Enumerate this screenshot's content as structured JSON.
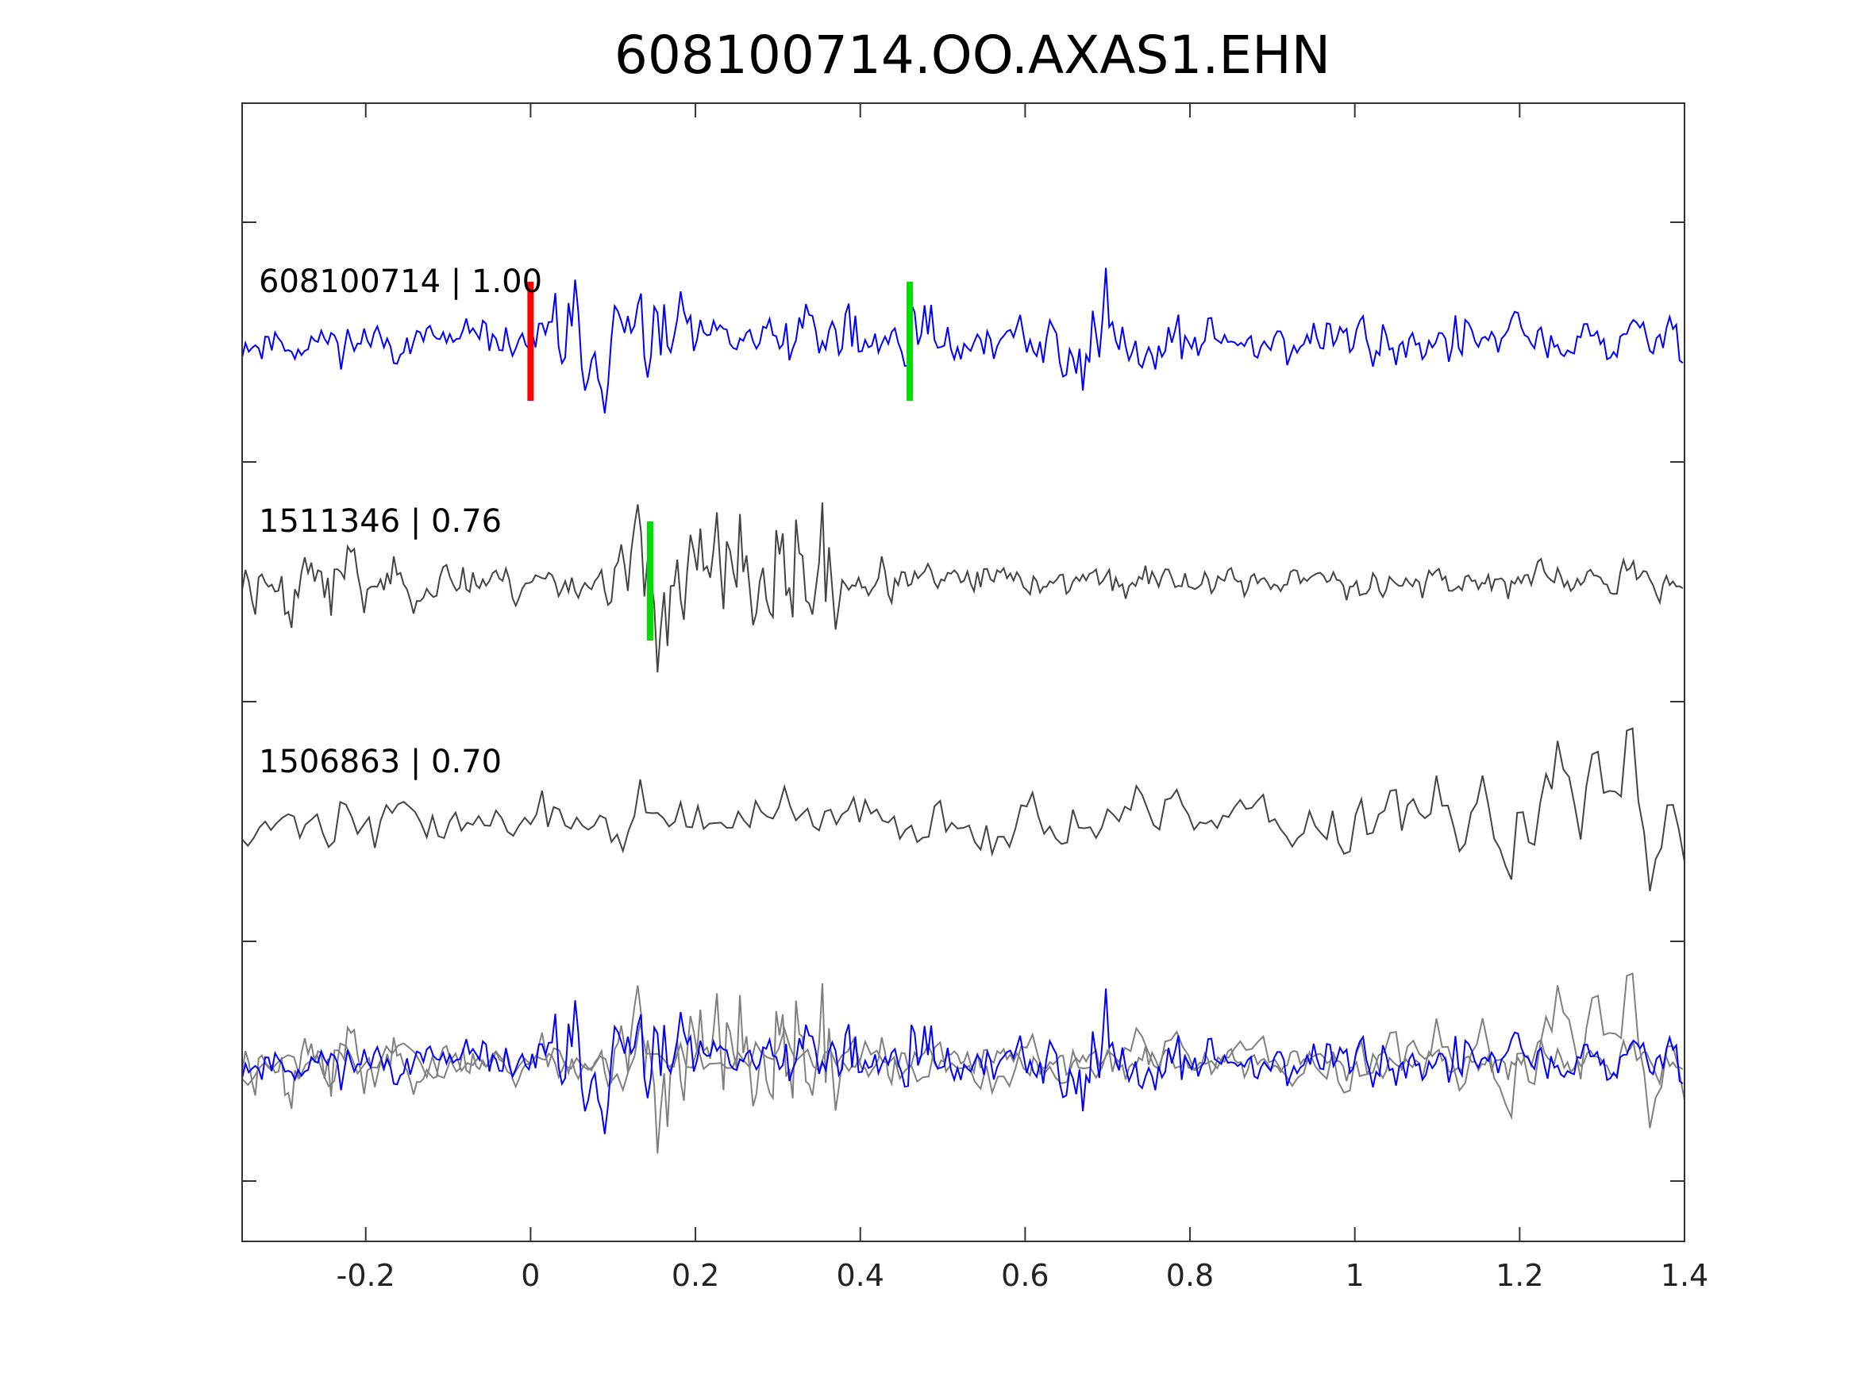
{
  "chart_data": {
    "type": "line",
    "title": "608100714.OO.AXAS1.EHN",
    "xlabel": "",
    "ylabel": "",
    "xlim": [
      -0.35,
      1.4
    ],
    "x_ticks": [
      "-0.2",
      "0",
      "0.2",
      "0.4",
      "0.6",
      "0.8",
      "1",
      "1.2",
      "1.4"
    ],
    "x_tick_values": [
      -0.2,
      0,
      0.2,
      0.4,
      0.6,
      0.8,
      1,
      1.2,
      1.4
    ],
    "y_ticks_count": 9,
    "y_labels_shown": false,
    "grid": false,
    "colors": {
      "main_trace": "#0000ff",
      "neighbor_trace": "#444444",
      "overlay_neighbor": "#808080",
      "p_pick": "#ff0000",
      "s_pick": "#00dd00",
      "axes": "#333333"
    },
    "series": [
      {
        "label": "608100714 | 1.00",
        "role": "reference",
        "color": "#0000ff",
        "picks": [
          {
            "type": "P",
            "time": 0.0,
            "color": "#ff0000"
          },
          {
            "type": "S",
            "time": 0.46,
            "color": "#00dd00"
          }
        ]
      },
      {
        "label": "1511346 | 0.76",
        "role": "neighbor",
        "color": "#444444",
        "picks": [
          {
            "type": "S",
            "time": 0.145,
            "color": "#00dd00"
          }
        ]
      },
      {
        "label": "1506863 | 0.70",
        "role": "neighbor",
        "color": "#444444",
        "picks": []
      }
    ],
    "overlay": {
      "description_hidden": true,
      "series_roles": [
        "neighbor",
        "neighbor",
        "reference"
      ]
    }
  }
}
